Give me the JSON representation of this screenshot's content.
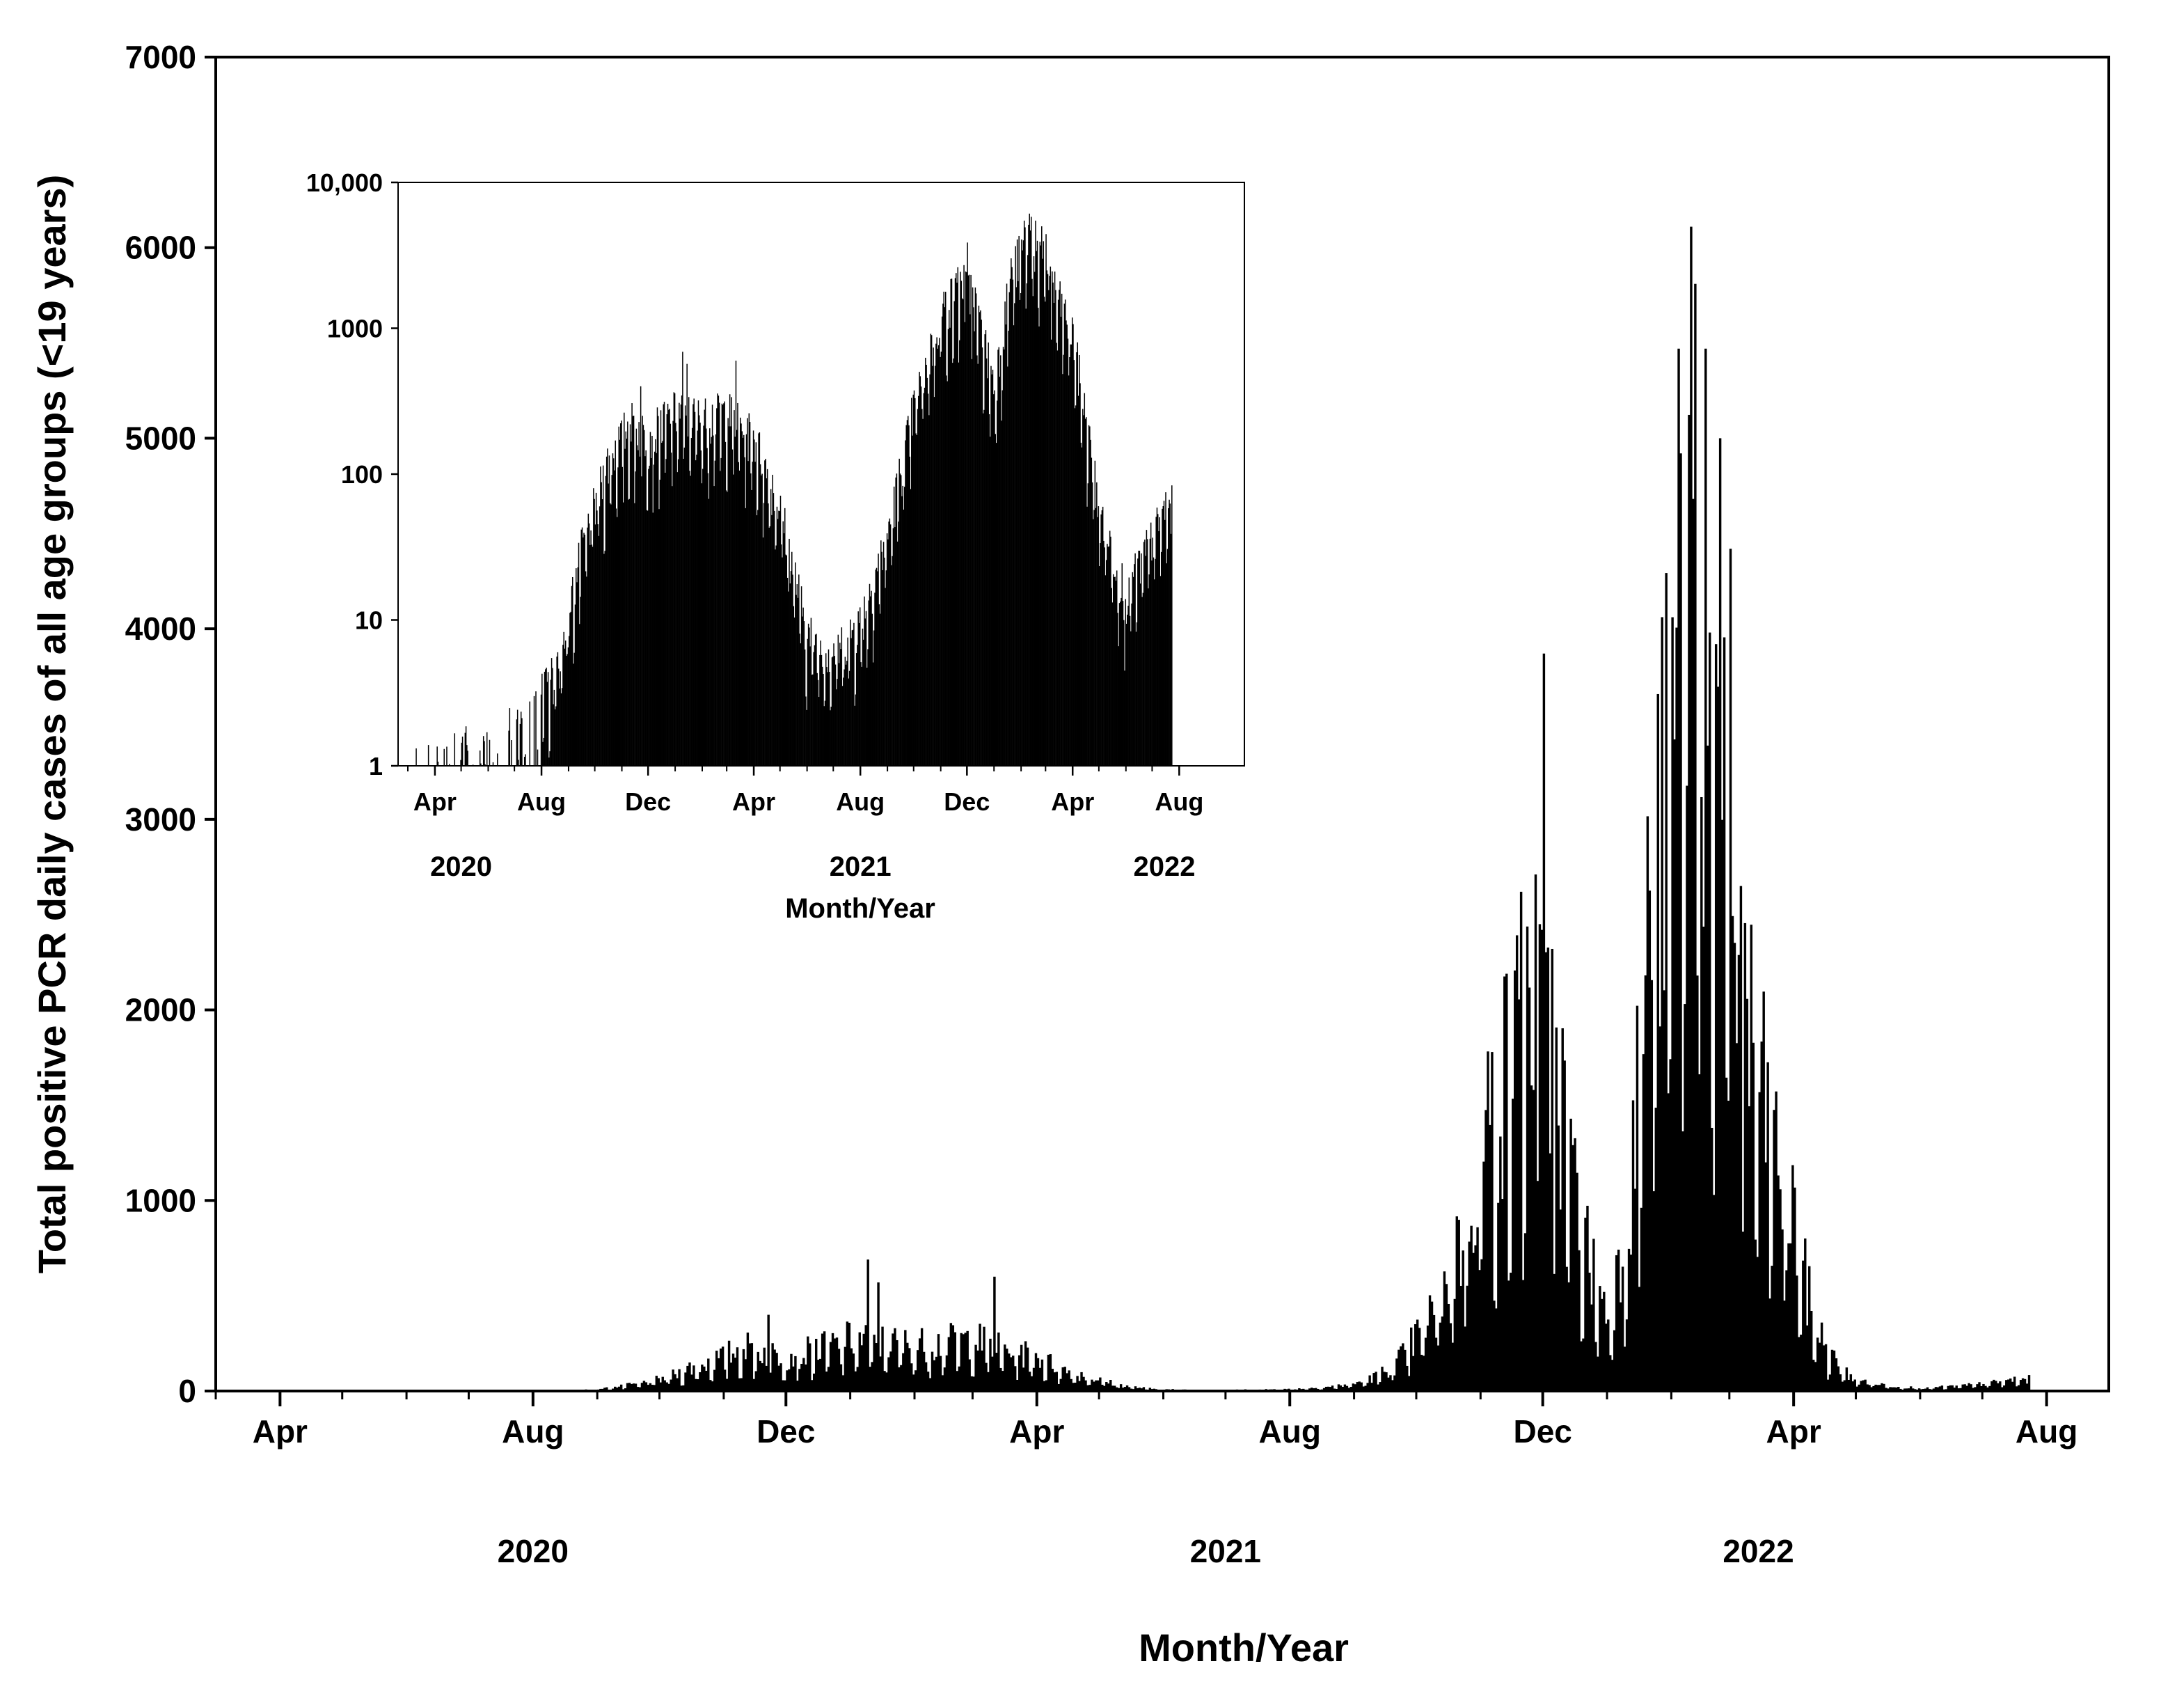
{
  "chart_data": [
    {
      "id": "main",
      "type": "bar",
      "title": "",
      "xlabel": "Month/Year",
      "ylabel": "Total positive PCR daily cases of all age groups (<19 years)",
      "x_range": [
        "2020-03-01",
        "2022-08-31"
      ],
      "ylim": [
        0,
        7000
      ],
      "yscale": "linear",
      "y_ticks": [
        "0",
        "1000",
        "2000",
        "3000",
        "4000",
        "5000",
        "6000",
        "7000"
      ],
      "x_ticks": [
        {
          "date": "2020-04-01",
          "label": "Apr"
        },
        {
          "date": "2020-08-01",
          "label": "Aug"
        },
        {
          "date": "2020-12-01",
          "label": "Dec"
        },
        {
          "date": "2021-04-01",
          "label": "Apr"
        },
        {
          "date": "2021-08-01",
          "label": "Aug"
        },
        {
          "date": "2021-12-01",
          "label": "Dec"
        },
        {
          "date": "2022-04-01",
          "label": "Apr"
        },
        {
          "date": "2022-08-01",
          "label": "Aug"
        }
      ],
      "year_labels": [
        {
          "date": "2020-08-01",
          "label": "2020"
        },
        {
          "date": "2021-07-01",
          "label": "2021"
        },
        {
          "date": "2022-03-15",
          "label": "2022"
        }
      ],
      "grid": false,
      "legend": "none",
      "bar_color": "#000000",
      "series_profile": {
        "start_date": "2020-03-07",
        "end_date": "2022-07-23",
        "daily_values_approx": "profile by month (approximate typical level)",
        "levels": [
          {
            "date": "2020-03-07",
            "value": 1
          },
          {
            "date": "2020-07-15",
            "value": 2
          },
          {
            "date": "2020-08-20",
            "value": 5
          },
          {
            "date": "2020-09-15",
            "value": 30
          },
          {
            "date": "2020-10-15",
            "value": 120
          },
          {
            "date": "2020-11-10",
            "value": 230
          },
          {
            "date": "2020-12-01",
            "value": 180
          },
          {
            "date": "2021-01-01",
            "value": 270
          },
          {
            "date": "2021-02-01",
            "value": 240
          },
          {
            "date": "2021-03-01",
            "value": 270
          },
          {
            "date": "2021-04-01",
            "value": 180
          },
          {
            "date": "2021-05-01",
            "value": 60
          },
          {
            "date": "2021-06-01",
            "value": 8
          },
          {
            "date": "2021-07-01",
            "value": 6
          },
          {
            "date": "2021-08-01",
            "value": 10
          },
          {
            "date": "2021-09-01",
            "value": 40
          },
          {
            "date": "2021-10-01",
            "value": 300
          },
          {
            "date": "2021-11-01",
            "value": 1300
          },
          {
            "date": "2021-11-25",
            "value": 2100
          },
          {
            "date": "2021-12-10",
            "value": 1500
          },
          {
            "date": "2022-01-01",
            "value": 400
          },
          {
            "date": "2022-01-20",
            "value": 2400
          },
          {
            "date": "2022-02-10",
            "value": 4500
          },
          {
            "date": "2022-03-01",
            "value": 2600
          },
          {
            "date": "2022-04-01",
            "value": 900
          },
          {
            "date": "2022-05-01",
            "value": 60
          },
          {
            "date": "2022-06-01",
            "value": 15
          },
          {
            "date": "2022-07-15",
            "value": 60
          }
        ],
        "notable_peaks": [
          {
            "date": "2020-11-22",
            "value": 400
          },
          {
            "date": "2021-01-09",
            "value": 690
          },
          {
            "date": "2021-01-14",
            "value": 570
          },
          {
            "date": "2021-03-11",
            "value": 600
          },
          {
            "date": "2021-11-20",
            "value": 2620
          },
          {
            "date": "2021-11-29",
            "value": 2450
          },
          {
            "date": "2021-12-01",
            "value": 3870
          },
          {
            "date": "2021-12-05",
            "value": 2320
          },
          {
            "date": "2022-02-04",
            "value": 5470
          },
          {
            "date": "2022-02-10",
            "value": 6110
          },
          {
            "date": "2022-02-12",
            "value": 5810
          },
          {
            "date": "2022-02-17",
            "value": 5470
          },
          {
            "date": "2022-02-24",
            "value": 5000
          },
          {
            "date": "2022-03-01",
            "value": 4420
          },
          {
            "date": "2022-03-06",
            "value": 2650
          }
        ]
      }
    },
    {
      "id": "inset",
      "type": "bar",
      "title": "",
      "xlabel": "Month/Year",
      "ylabel": "",
      "x_range": [
        "2020-03-01",
        "2022-08-31"
      ],
      "ylim": [
        1,
        10000
      ],
      "yscale": "log",
      "y_ticks": [
        "1",
        "10",
        "100",
        "1000",
        "10,000"
      ],
      "x_ticks": [
        {
          "date": "2020-04-01",
          "label": "Apr"
        },
        {
          "date": "2020-08-01",
          "label": "Aug"
        },
        {
          "date": "2020-12-01",
          "label": "Dec"
        },
        {
          "date": "2021-04-01",
          "label": "Apr"
        },
        {
          "date": "2021-08-01",
          "label": "Aug"
        },
        {
          "date": "2021-12-01",
          "label": "Dec"
        },
        {
          "date": "2022-04-01",
          "label": "Apr"
        },
        {
          "date": "2022-08-01",
          "label": "Aug"
        }
      ],
      "year_labels": [
        {
          "date": "2020-05-01",
          "label": "2020"
        },
        {
          "date": "2021-08-01",
          "label": "2021"
        },
        {
          "date": "2022-07-15",
          "label": "2022"
        }
      ],
      "grid": false,
      "legend": "none",
      "bar_color": "#000000",
      "same_series_as": "main"
    }
  ]
}
